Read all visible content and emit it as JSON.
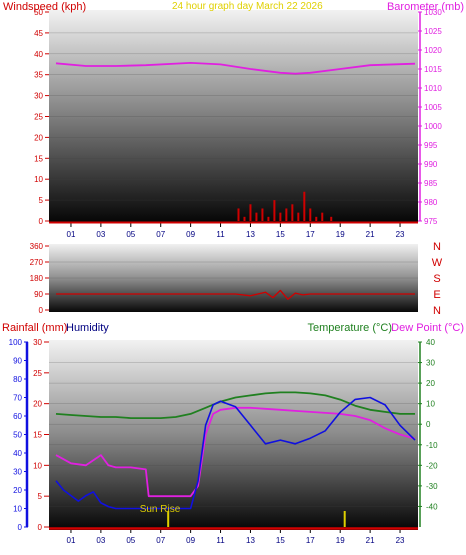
{
  "colors": {
    "red": "#d00000",
    "magenta": "#e020e0",
    "yellow": "#e0d000",
    "blue": "#1010e0",
    "green": "#208020",
    "darkblue": "#000080"
  },
  "chart_data": [
    {
      "type": "line",
      "title": "24 hour graph day   March 22 2026",
      "left_label": "Windspeed (kph)",
      "right_label": "Barometer (mb)",
      "x_ticks": [
        "01",
        "03",
        "05",
        "07",
        "09",
        "11",
        "13",
        "15",
        "17",
        "19",
        "21",
        "23"
      ],
      "left_ylim": [
        0,
        50
      ],
      "left_ticks": [
        0,
        5,
        10,
        15,
        20,
        25,
        30,
        35,
        40,
        45,
        50
      ],
      "right_ylim": [
        975,
        1030
      ],
      "right_ticks": [
        975,
        980,
        985,
        990,
        995,
        1000,
        1005,
        1010,
        1015,
        1020,
        1025,
        1030
      ],
      "series": [
        {
          "metric": "barometer",
          "axis": "right",
          "color": "#e020e0",
          "x": [
            0,
            2,
            4,
            6,
            9,
            11,
            13,
            15,
            16,
            17,
            19,
            21,
            24
          ],
          "y": [
            1016.5,
            1015.8,
            1015.8,
            1016.0,
            1016.6,
            1016.2,
            1015.0,
            1014.0,
            1013.8,
            1014.0,
            1015.0,
            1016.0,
            1016.4
          ]
        },
        {
          "metric": "windspeed",
          "axis": "left",
          "color": "#d00000",
          "x": [
            0,
            12.2,
            12.6,
            13.0,
            13.4,
            13.8,
            14.2,
            14.6,
            15.0,
            15.4,
            15.8,
            16.2,
            16.6,
            17.0,
            17.4,
            17.8,
            18.4,
            24
          ],
          "y": [
            0,
            3,
            1,
            4,
            2,
            3,
            1,
            5,
            2,
            3,
            4,
            2,
            7,
            3,
            1,
            2,
            1,
            0
          ]
        }
      ]
    },
    {
      "type": "line",
      "right_label": [
        "N",
        "W",
        "S",
        "E",
        "N"
      ],
      "x_ticks": [],
      "left_ylim": [
        0,
        360
      ],
      "left_ticks": [
        0,
        90,
        180,
        270,
        360
      ],
      "series": [
        {
          "metric": "wind direction",
          "color": "#d00000",
          "x": [
            0,
            12,
            13,
            14,
            14.5,
            15,
            15.5,
            16,
            16.5,
            17,
            17.5,
            24
          ],
          "y": [
            90,
            90,
            80,
            100,
            70,
            110,
            60,
            95,
            85,
            90,
            90,
            90
          ]
        }
      ]
    },
    {
      "type": "line",
      "left_label_1": "Rainfall (mm)",
      "left_label_2": "Humidity",
      "right_label_1": "Temperature (°C)",
      "right_label_2": "Dew Point (°C)",
      "annotation": "Sun Rise",
      "x_ticks": [
        "01",
        "03",
        "05",
        "07",
        "09",
        "11",
        "13",
        "15",
        "17",
        "19",
        "21",
        "23"
      ],
      "humidity_ylim": [
        0,
        100
      ],
      "humidity_ticks": [
        0,
        10,
        20,
        30,
        40,
        50,
        60,
        70,
        80,
        90,
        100
      ],
      "rain_ylim": [
        0,
        30
      ],
      "rain_ticks": [
        0,
        5,
        10,
        15,
        20,
        25,
        30
      ],
      "temp_ylim": [
        -50,
        40
      ],
      "temp_ticks": [
        -40,
        -30,
        -20,
        -10,
        0,
        10,
        20,
        30,
        40
      ],
      "sunrise_hour": 7.5,
      "sunset_hour": 19.3,
      "series": [
        {
          "metric": "humidity",
          "color": "#1010e0",
          "x": [
            0,
            0.5,
            1,
            1.5,
            2,
            2.5,
            3,
            3.5,
            4,
            5,
            6,
            7,
            8,
            9,
            9.5,
            10,
            10.5,
            11,
            12,
            12.5,
            13,
            14,
            15,
            16,
            17,
            18,
            19,
            20,
            21,
            22,
            23,
            24
          ],
          "y": [
            25,
            20,
            17,
            14,
            17,
            19,
            13,
            11,
            10,
            10,
            10,
            10,
            10,
            10,
            25,
            55,
            66,
            68,
            65,
            60,
            55,
            45,
            47,
            45,
            48,
            52,
            62,
            69,
            70,
            66,
            55,
            47
          ]
        },
        {
          "metric": "temperature",
          "color": "#208020",
          "x": [
            0,
            1,
            2,
            3,
            4,
            5,
            6,
            7,
            8,
            9,
            10,
            11,
            12,
            13,
            14,
            15,
            16,
            17,
            18,
            19,
            20,
            21,
            22,
            23,
            24
          ],
          "y": [
            5,
            4.5,
            4,
            3.5,
            3.5,
            3,
            3,
            3,
            3.5,
            5,
            8,
            11,
            13,
            14,
            15,
            15.5,
            15.5,
            15,
            14,
            12,
            9,
            7,
            6,
            5,
            5
          ]
        },
        {
          "metric": "dew point",
          "color": "#e020e0",
          "x": [
            0,
            1,
            2,
            3,
            3.5,
            4,
            5,
            6,
            6.2,
            7,
            8,
            9,
            9.5,
            10,
            10.5,
            11,
            12,
            13,
            14,
            15,
            16,
            17,
            18,
            19,
            20,
            21,
            22,
            23,
            24
          ],
          "y": [
            -15,
            -19,
            -20,
            -15,
            -20,
            -21,
            -21,
            -22,
            -35,
            -35,
            -35,
            -35,
            -30,
            -5,
            5,
            7,
            8,
            8,
            7.5,
            7,
            6.5,
            6,
            5.5,
            5,
            4,
            2,
            -2,
            -5,
            -7
          ]
        },
        {
          "metric": "rainfall",
          "color": "#d00000",
          "x": [
            0,
            24
          ],
          "y": [
            0,
            0
          ]
        }
      ]
    }
  ]
}
